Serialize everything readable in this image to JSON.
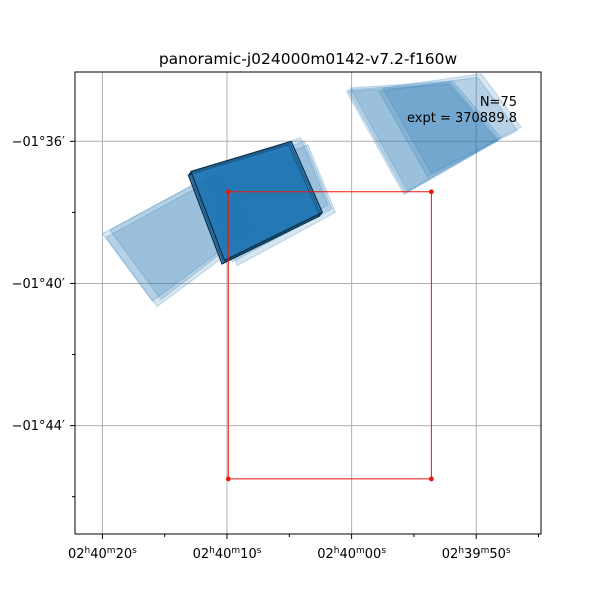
{
  "chart_data": {
    "type": "footprint-map",
    "title": "panoramic-j024000m0142-v7.2-f160w",
    "annotations": [
      "N=75",
      "expt = 370889.8"
    ],
    "grid": true,
    "x_ticks": [
      {
        "value": 20,
        "label": "02h40m20s"
      },
      {
        "value": 10,
        "label": "02h40m10s"
      },
      {
        "value": 0,
        "label": "02h40m00s"
      },
      {
        "value": -10,
        "label": "02h39m50s"
      }
    ],
    "y_ticks": [
      {
        "value": -36,
        "label": "−01°36′"
      },
      {
        "value": -40,
        "label": "−01°40′"
      },
      {
        "value": -44,
        "label": "−01°44′"
      }
    ],
    "xlim": [
      22.2,
      -15.2
    ],
    "ylim": [
      -47.05,
      -34.05
    ],
    "footprints": [
      {
        "name": "left-group",
        "style": "faint",
        "corners": [
          [
            20,
            -38.6
          ],
          [
            11,
            -36.9
          ],
          [
            7.9,
            -38.4
          ],
          [
            16,
            -40.5
          ]
        ]
      },
      {
        "name": "left-group",
        "style": "faint",
        "corners": [
          [
            19.7,
            -38.7
          ],
          [
            10.8,
            -37.0
          ],
          [
            7.6,
            -38.55
          ],
          [
            15.6,
            -40.65
          ]
        ]
      },
      {
        "name": "left-group",
        "style": "faint",
        "corners": [
          [
            19.4,
            -38.5
          ],
          [
            10.5,
            -36.8
          ],
          [
            7.3,
            -38.3
          ],
          [
            15.3,
            -40.45
          ]
        ]
      },
      {
        "name": "mid-group",
        "style": "faint",
        "corners": [
          [
            11.4,
            -37.0
          ],
          [
            3.8,
            -36.0
          ],
          [
            1.6,
            -37.9
          ],
          [
            9.6,
            -39.4
          ]
        ]
      },
      {
        "name": "mid-group",
        "style": "faint",
        "corners": [
          [
            11.0,
            -37.1
          ],
          [
            3.5,
            -36.1
          ],
          [
            1.3,
            -38.0
          ],
          [
            9.2,
            -39.5
          ]
        ]
      },
      {
        "name": "mid-group",
        "style": "faint",
        "corners": [
          [
            11.7,
            -36.9
          ],
          [
            4.1,
            -35.9
          ],
          [
            1.9,
            -37.8
          ],
          [
            9.9,
            -39.3
          ]
        ]
      },
      {
        "name": "right-group",
        "style": "faint",
        "corners": [
          [
            0.1,
            -34.5
          ],
          [
            -8.1,
            -34.3
          ],
          [
            -12.0,
            -35.9
          ],
          [
            -4.5,
            -37.4
          ]
        ]
      },
      {
        "name": "right-group",
        "style": "faint",
        "corners": [
          [
            -2.5,
            -34.5
          ],
          [
            -10.4,
            -34.1
          ],
          [
            -13.6,
            -35.6
          ],
          [
            -6.4,
            -36.9
          ]
        ]
      },
      {
        "name": "right-group",
        "style": "faint",
        "corners": [
          [
            0.4,
            -34.6
          ],
          [
            -7.8,
            -34.4
          ],
          [
            -11.7,
            -36.0
          ],
          [
            -4.2,
            -37.5
          ]
        ]
      },
      {
        "name": "right-group",
        "style": "faint",
        "corners": [
          [
            -2.2,
            -34.6
          ],
          [
            -10.1,
            -34.2
          ],
          [
            -13.3,
            -35.7
          ],
          [
            -6.1,
            -37.0
          ]
        ]
      },
      {
        "name": "right-group",
        "style": "faint",
        "corners": [
          [
            0.3,
            -34.55
          ],
          [
            -7.9,
            -34.35
          ],
          [
            -11.8,
            -35.95
          ],
          [
            -4.3,
            -37.45
          ]
        ]
      },
      {
        "name": "dark-pointing",
        "style": "dark",
        "corners": [
          [
            13.0,
            -36.9
          ],
          [
            4.95,
            -36.05
          ],
          [
            2.45,
            -38.05
          ],
          [
            10.3,
            -39.4
          ]
        ]
      },
      {
        "name": "dark-pointing",
        "style": "dark",
        "corners": [
          [
            13.1,
            -36.95
          ],
          [
            5.05,
            -36.1
          ],
          [
            2.55,
            -38.1
          ],
          [
            10.4,
            -39.45
          ]
        ]
      },
      {
        "name": "dark-pointing",
        "style": "dark",
        "corners": [
          [
            12.9,
            -36.85
          ],
          [
            4.85,
            -36.0
          ],
          [
            2.35,
            -38.0
          ],
          [
            10.2,
            -39.35
          ]
        ]
      }
    ],
    "red_path": [
      [
        9.9,
        -37.42
      ],
      [
        -6.4,
        -37.42
      ],
      [
        -6.4,
        -45.5
      ],
      [
        9.9,
        -45.5
      ],
      [
        9.9,
        -37.42
      ]
    ]
  }
}
